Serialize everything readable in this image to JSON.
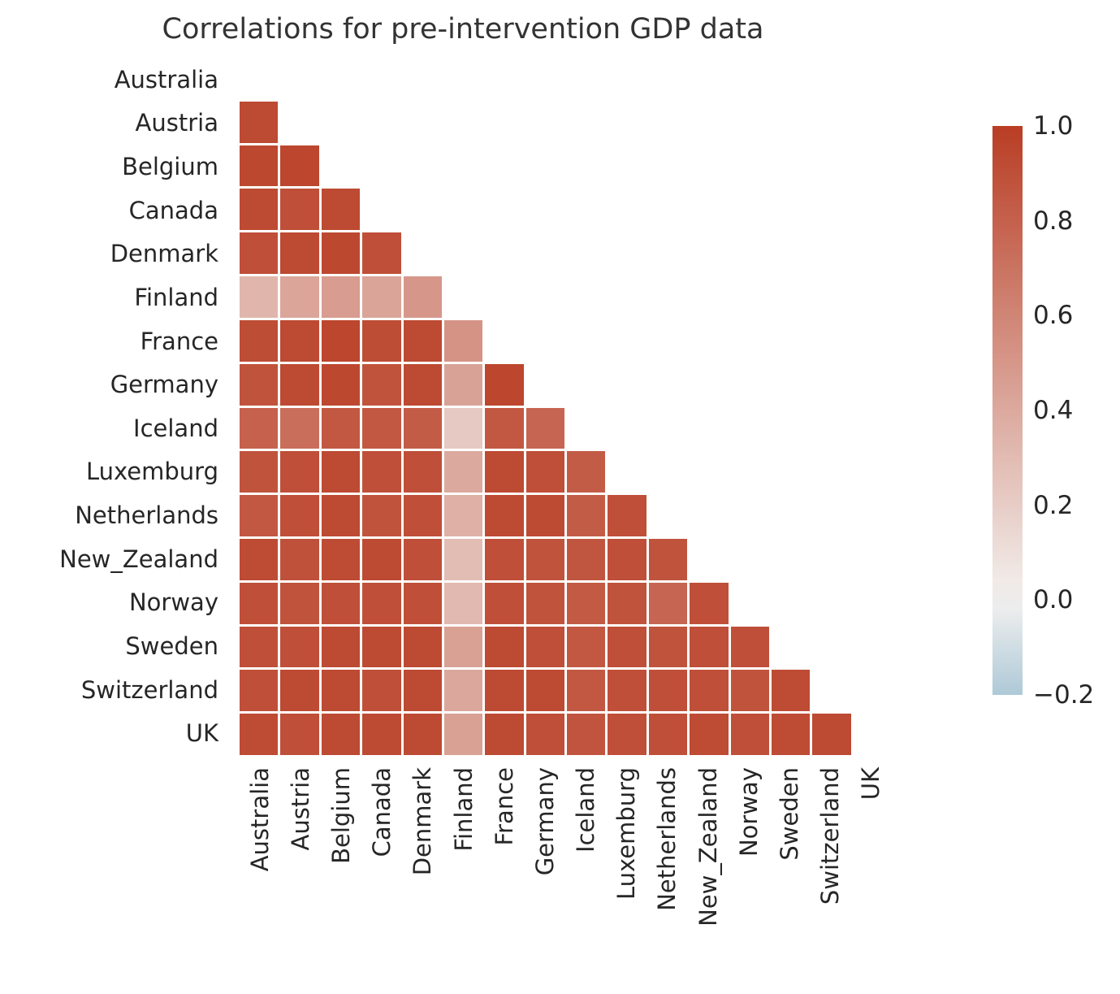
{
  "chart_data": {
    "type": "heatmap",
    "title": "Correlations for pre-intervention GDP data",
    "categories": [
      "Australia",
      "Austria",
      "Belgium",
      "Canada",
      "Denmark",
      "Finland",
      "France",
      "Germany",
      "Iceland",
      "Luxemburg",
      "Netherlands",
      "New_Zealand",
      "Norway",
      "Sweden",
      "Switzerland",
      "UK"
    ],
    "mask": "upper-triangle-and-diagonal",
    "values_lower_triangle": [
      [],
      [
        0.93
      ],
      [
        0.94,
        0.95
      ],
      [
        0.93,
        0.9,
        0.93
      ],
      [
        0.9,
        0.93,
        0.94,
        0.9
      ],
      [
        0.33,
        0.42,
        0.47,
        0.43,
        0.5
      ],
      [
        0.91,
        0.93,
        0.95,
        0.91,
        0.93,
        0.52
      ],
      [
        0.88,
        0.93,
        0.94,
        0.88,
        0.93,
        0.44,
        0.95
      ],
      [
        0.8,
        0.73,
        0.85,
        0.85,
        0.83,
        0.22,
        0.85,
        0.78
      ],
      [
        0.88,
        0.9,
        0.93,
        0.9,
        0.9,
        0.4,
        0.93,
        0.9,
        0.83
      ],
      [
        0.85,
        0.9,
        0.93,
        0.88,
        0.9,
        0.36,
        0.93,
        0.93,
        0.83,
        0.9
      ],
      [
        0.92,
        0.89,
        0.92,
        0.93,
        0.9,
        0.29,
        0.9,
        0.88,
        0.86,
        0.9,
        0.88
      ],
      [
        0.9,
        0.88,
        0.9,
        0.9,
        0.9,
        0.31,
        0.9,
        0.88,
        0.84,
        0.88,
        0.78,
        0.9
      ],
      [
        0.9,
        0.9,
        0.93,
        0.93,
        0.93,
        0.45,
        0.93,
        0.9,
        0.85,
        0.9,
        0.88,
        0.9,
        0.9
      ],
      [
        0.9,
        0.93,
        0.93,
        0.9,
        0.93,
        0.41,
        0.93,
        0.93,
        0.85,
        0.9,
        0.9,
        0.9,
        0.88,
        0.92
      ],
      [
        0.92,
        0.9,
        0.93,
        0.93,
        0.93,
        0.45,
        0.93,
        0.9,
        0.87,
        0.9,
        0.9,
        0.92,
        0.9,
        0.92,
        0.93
      ]
    ],
    "colorbar": {
      "position": "right",
      "min": -0.2,
      "max": 1.0,
      "ticks": [
        "1.0",
        "0.8",
        "0.6",
        "0.4",
        "0.2",
        "0.0",
        "−0.2"
      ],
      "tick_values": [
        1.0,
        0.8,
        0.6,
        0.4,
        0.2,
        0.0,
        -0.2
      ]
    },
    "colors": {
      "max_red": "#b93d24",
      "zero_white": "#f3f1ef",
      "min_blue": "#aec9d8",
      "cell_gap_line": "#ffffff",
      "text": "#262626"
    },
    "grid": "white-cell-separators",
    "legend_position": "right-colorbar"
  }
}
